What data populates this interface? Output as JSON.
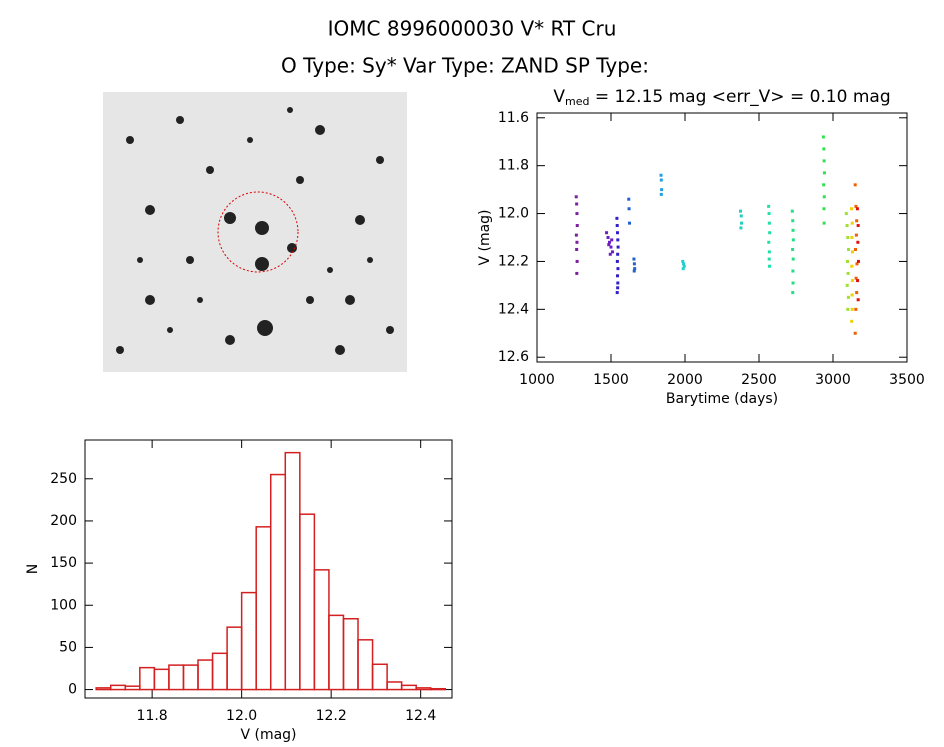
{
  "header": {
    "title": "IOMC 8996000030    V* RT Cru",
    "subtitle": "O Type: Sy*   Var Type: ZAND   SP Type:"
  },
  "chart_data": [
    {
      "type": "scatter",
      "title": {
        "main": "V",
        "sub": "med",
        "rest": " = 12.15 mag <err_V> = 0.10 mag"
      },
      "x_label": "Barytime (days)",
      "y_label": "V (mag)",
      "xlim": [
        1000,
        3500
      ],
      "xticks": [
        1000,
        1500,
        2000,
        2500,
        3000,
        3500
      ],
      "ylim": [
        12.62,
        11.58
      ],
      "yticks": [
        11.6,
        11.8,
        {
          "value": 12,
          "label": "12.0"
        },
        12.2,
        12.4,
        12.6
      ],
      "series": [
        {
          "color": "#7a1fa0",
          "x": [
            1265,
            1268,
            1270,
            1272,
            1266,
            1270,
            1268,
            1271,
            1269
          ],
          "values": [
            11.93,
            11.96,
            12.0,
            12.05,
            12.09,
            12.12,
            12.15,
            12.2,
            12.25
          ]
        },
        {
          "color": "#6a20c0",
          "x": [
            1470,
            1480,
            1490,
            1500,
            1510,
            1495,
            1485,
            1505
          ],
          "values": [
            12.08,
            12.1,
            12.12,
            12.14,
            12.16,
            12.17,
            12.13,
            12.11
          ]
        },
        {
          "color": "#3020c8",
          "x": [
            1540,
            1542,
            1544,
            1546,
            1548,
            1545,
            1543,
            1547,
            1544,
            1546,
            1545,
            1542
          ],
          "values": [
            12.02,
            12.05,
            12.08,
            12.11,
            12.14,
            12.17,
            12.2,
            12.23,
            12.26,
            12.29,
            12.31,
            12.33
          ]
        },
        {
          "color": "#2060d0",
          "x": [
            1620,
            1622,
            1625,
            1655,
            1658,
            1660,
            1657
          ],
          "values": [
            11.94,
            11.98,
            12.04,
            12.19,
            12.21,
            12.23,
            12.24
          ]
        },
        {
          "color": "#20a0e0",
          "x": [
            1838,
            1840,
            1842,
            1840
          ],
          "values": [
            11.84,
            11.86,
            11.9,
            11.92
          ]
        },
        {
          "color": "#20d0d0",
          "x": [
            1985,
            1990,
            1995,
            1988
          ],
          "values": [
            12.2,
            12.21,
            12.22,
            12.23
          ]
        },
        {
          "color": "#20d0c0",
          "x": [
            2375,
            2380,
            2382,
            2378
          ],
          "values": [
            11.99,
            12.01,
            12.04,
            12.06
          ]
        },
        {
          "color": "#20e0a8",
          "x": [
            2565,
            2568,
            2570,
            2572,
            2566,
            2570,
            2569,
            2571
          ],
          "values": [
            11.97,
            12.0,
            12.04,
            12.08,
            12.12,
            12.16,
            12.19,
            12.22
          ]
        },
        {
          "color": "#20e080",
          "x": [
            2725,
            2728,
            2730,
            2732,
            2727,
            2731,
            2729,
            2730,
            2728
          ],
          "values": [
            11.99,
            12.03,
            12.07,
            12.11,
            12.15,
            12.19,
            12.24,
            12.29,
            12.33
          ]
        },
        {
          "color": "#30e050",
          "x": [
            2935,
            2938,
            2940,
            2942,
            2937,
            2941,
            2939,
            2940
          ],
          "values": [
            11.68,
            11.73,
            11.78,
            11.83,
            11.88,
            11.93,
            11.98,
            12.04
          ]
        },
        {
          "color": "#a0e030",
          "x": [
            3090,
            3095,
            3100,
            3105,
            3098,
            3102,
            3096,
            3104,
            3100
          ],
          "values": [
            12.0,
            12.05,
            12.1,
            12.15,
            12.2,
            12.25,
            12.3,
            12.35,
            12.4
          ]
        },
        {
          "color": "#f0d000",
          "x": [
            3125,
            3130,
            3128,
            3132,
            3127,
            3131,
            3129,
            3130,
            3126
          ],
          "values": [
            11.98,
            12.04,
            12.1,
            12.16,
            12.22,
            12.28,
            12.34,
            12.4,
            12.45
          ]
        },
        {
          "color": "#f06000",
          "x": [
            3150,
            3155,
            3160,
            3158,
            3152,
            3162,
            3156,
            3160,
            3154,
            3150
          ],
          "values": [
            11.88,
            11.97,
            12.03,
            12.09,
            12.15,
            12.21,
            12.27,
            12.33,
            12.4,
            12.5
          ]
        },
        {
          "color": "#e01010",
          "x": [
            3165,
            3170,
            3168,
            3172,
            3166,
            3170
          ],
          "values": [
            11.98,
            12.05,
            12.12,
            12.2,
            12.28,
            12.36
          ]
        }
      ]
    },
    {
      "type": "histogram",
      "x_label": "V (mag)",
      "y_label": "N",
      "color": "#d42020",
      "bins": [
        11.675,
        11.7075,
        11.74,
        11.7725,
        11.805,
        11.8375,
        11.87,
        11.9025,
        11.935,
        11.9675,
        12.0,
        12.0325,
        12.065,
        12.0975,
        12.13,
        12.1625,
        12.195,
        12.2275,
        12.26,
        12.2925,
        12.325,
        12.3575,
        12.39,
        12.4225,
        12.455
      ],
      "values": [
        2,
        5,
        4,
        26,
        24,
        29,
        29,
        35,
        43,
        74,
        115,
        193,
        255,
        281,
        208,
        142,
        88,
        84,
        59,
        30,
        9,
        5,
        2,
        1
      ],
      "xlim": [
        11.65,
        12.47
      ],
      "xticks": [
        11.8,
        {
          "value": 12,
          "label": "12.0"
        },
        12.2,
        12.4
      ],
      "ylim": [
        -10,
        296
      ],
      "yticks": [
        0,
        50,
        100,
        150,
        200,
        250
      ]
    }
  ]
}
